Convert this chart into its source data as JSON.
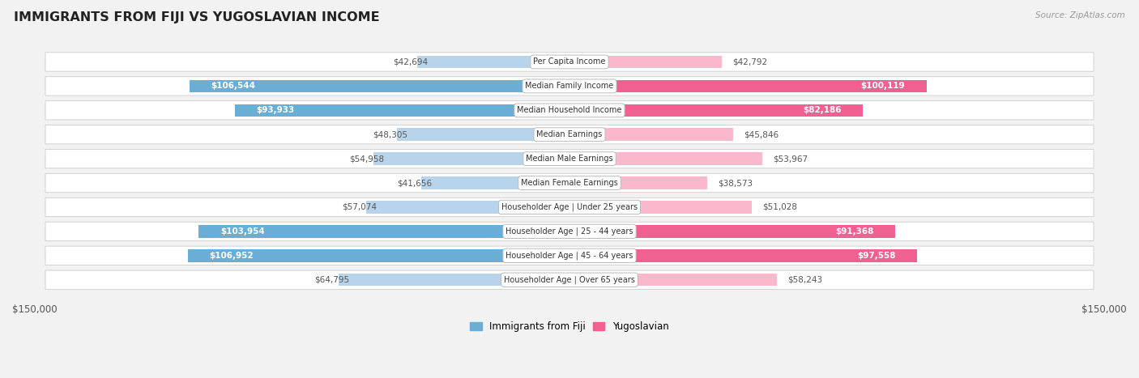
{
  "title": "IMMIGRANTS FROM FIJI VS YUGOSLAVIAN INCOME",
  "source": "Source: ZipAtlas.com",
  "categories": [
    "Per Capita Income",
    "Median Family Income",
    "Median Household Income",
    "Median Earnings",
    "Median Male Earnings",
    "Median Female Earnings",
    "Householder Age | Under 25 years",
    "Householder Age | 25 - 44 years",
    "Householder Age | 45 - 64 years",
    "Householder Age | Over 65 years"
  ],
  "fiji_values": [
    42694,
    106544,
    93933,
    48305,
    54958,
    41656,
    57074,
    103954,
    106952,
    64795
  ],
  "yugoslavian_values": [
    42792,
    100119,
    82186,
    45846,
    53967,
    38573,
    51028,
    91368,
    97558,
    58243
  ],
  "fiji_color_light": "#b8d4ea",
  "fiji_color_dark": "#6aaed6",
  "yugoslavian_color_light": "#f9b8cc",
  "yugoslavian_color_dark": "#f06090",
  "fiji_label": "Immigrants from Fiji",
  "yugoslavian_label": "Yugoslavian",
  "x_max": 150000,
  "fiji_text_threshold": 75000,
  "yugoslavian_text_threshold": 65000,
  "background_color": "#f2f2f2",
  "row_bg_color": "#ffffff",
  "row_border_color": "#cccccc",
  "label_text_color": "#555555",
  "title_color": "#222222",
  "source_color": "#999999"
}
